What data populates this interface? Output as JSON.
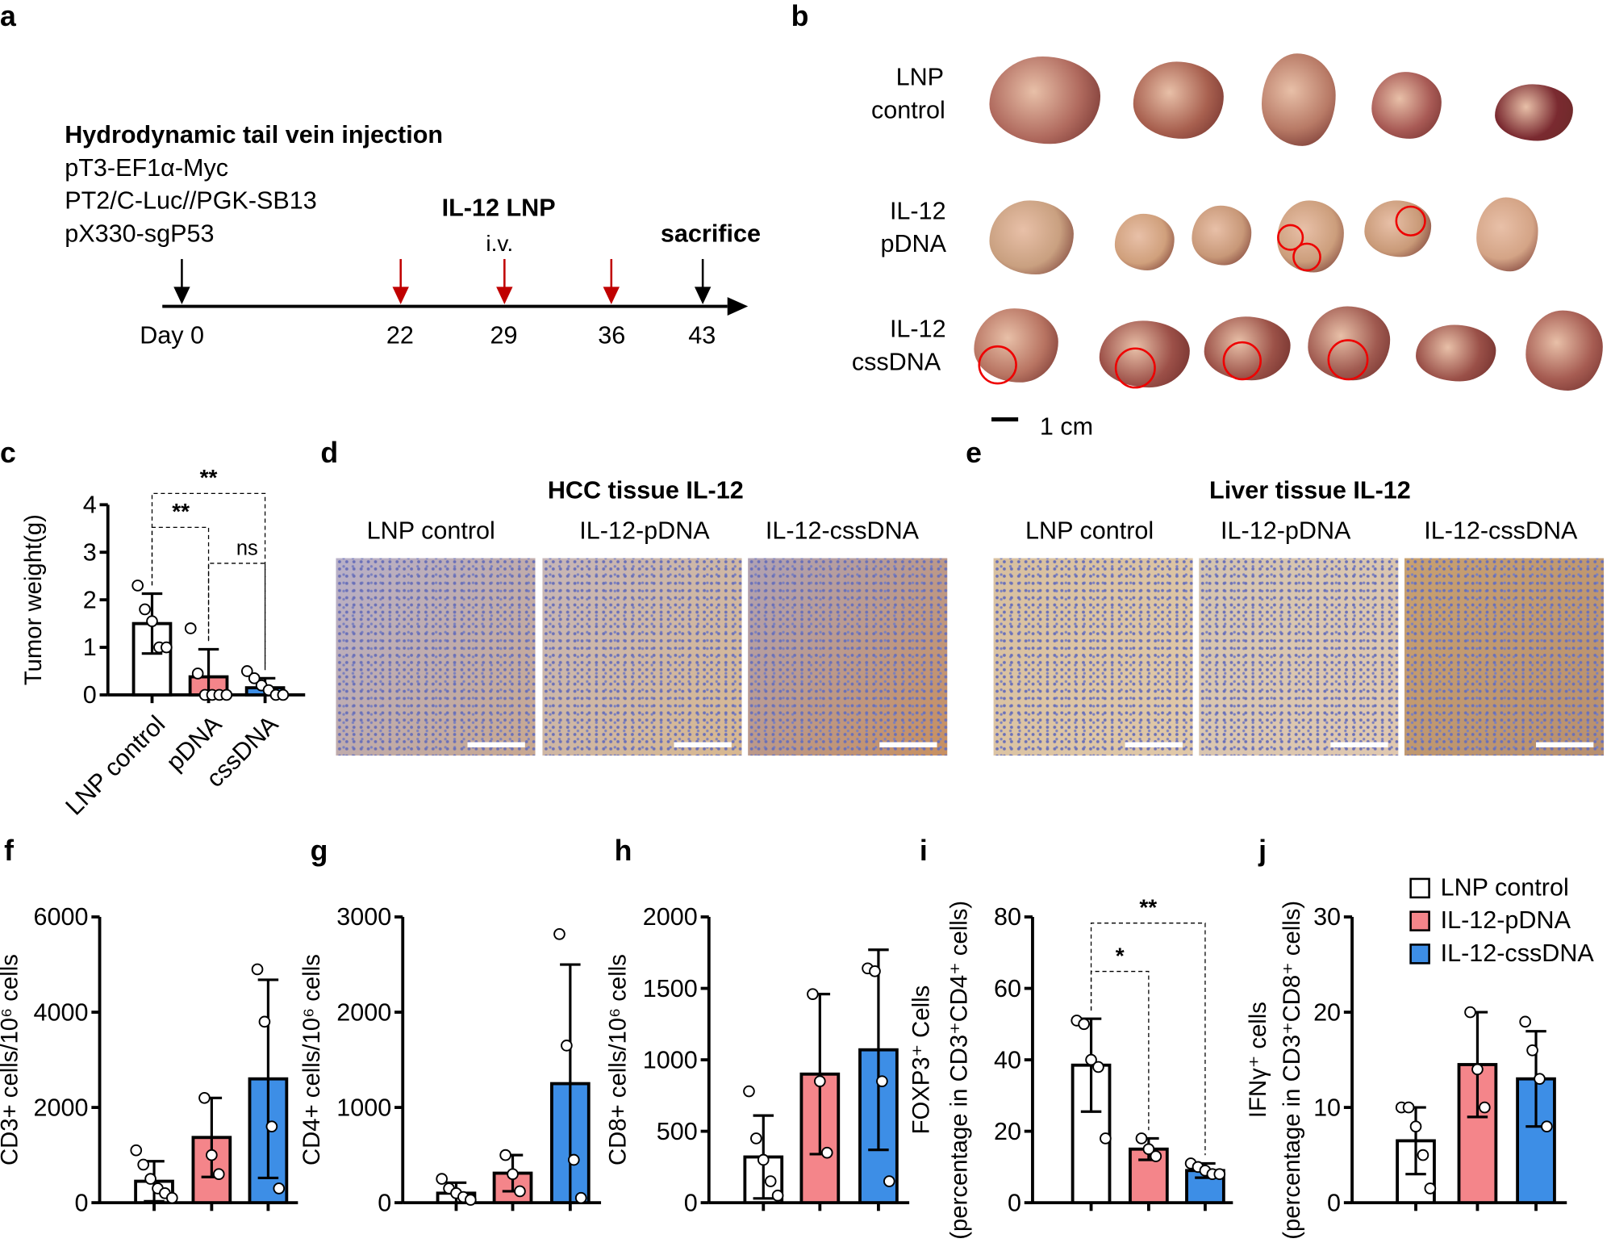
{
  "panel_letters": [
    "a",
    "b",
    "c",
    "d",
    "e",
    "f",
    "g",
    "h",
    "i",
    "j"
  ],
  "panel_a": {
    "heading": "Hydrodynamic tail vein injection",
    "plasmids": [
      "pT3-EF1α-Myc",
      "PT2/C-Luc//PGK-SB13",
      "pX330-sgP53"
    ],
    "treatment": "IL-12 LNP",
    "route": "i.v.",
    "endpoint": "sacrifice",
    "days": [
      "Day 0",
      "22",
      "29",
      "36",
      "43"
    ],
    "colors": {
      "injection": "#000000",
      "treatment": "#c00000"
    }
  },
  "panel_b": {
    "rows": [
      {
        "label_line1": "LNP",
        "label_line2": "control"
      },
      {
        "label_line1": "IL-12",
        "label_line2": "pDNA"
      },
      {
        "label_line1": "IL-12",
        "label_line2": "cssDNA"
      }
    ],
    "scale": "1 cm"
  },
  "panel_d": {
    "title": "HCC tissue IL-12",
    "columns": [
      "LNP control",
      "IL-12-pDNA",
      "IL-12-cssDNA"
    ]
  },
  "panel_e": {
    "title": "Liver tissue IL-12",
    "columns": [
      "LNP control",
      "IL-12-pDNA",
      "IL-12-cssDNA"
    ]
  },
  "legend": [
    {
      "label": "LNP control",
      "color": "#ffffff"
    },
    {
      "label": "IL-12-pDNA",
      "color": "#f4858a"
    },
    {
      "label": "IL-12-cssDNA",
      "color": "#3d8ee6"
    }
  ],
  "chart_data": [
    {
      "id": "c",
      "type": "bar",
      "ylabel": "Tumor weight(g)",
      "ylim": [
        0,
        4
      ],
      "yticks": [
        "0",
        "1",
        "2",
        "3",
        "4"
      ],
      "categories": [
        "LNP control",
        "pDNA",
        "cssDNA"
      ],
      "x_rotated": true,
      "means": [
        1.5,
        0.38,
        0.15
      ],
      "sd": [
        0.63,
        0.58,
        0.2
      ],
      "points": [
        [
          2.3,
          1.8,
          1.55,
          1.0,
          1.0
        ],
        [
          1.4,
          0.45,
          0,
          0,
          0,
          0
        ],
        [
          0.5,
          0.35,
          0.2,
          0.1,
          0,
          0
        ]
      ],
      "significance": [
        {
          "from": 0,
          "to": 2,
          "label": "**"
        },
        {
          "from": 0,
          "to": 1,
          "label": "**"
        },
        {
          "from": 1,
          "to": 2,
          "label": "ns"
        }
      ]
    },
    {
      "id": "f",
      "type": "bar",
      "ylabel": "CD3+ cells/10⁶ cells",
      "ylim": [
        0,
        6000
      ],
      "yticks": [
        "0",
        "2000",
        "4000",
        "6000"
      ],
      "categories": [
        "LNP control",
        "IL-12-pDNA",
        "IL-12-cssDNA"
      ],
      "means": [
        450,
        1370,
        2600
      ],
      "sd": [
        420,
        830,
        2080
      ],
      "points": [
        [
          1100,
          800,
          500,
          300,
          200,
          100
        ],
        [
          2200,
          1000,
          600
        ],
        [
          4900,
          3800,
          1600,
          300
        ]
      ],
      "significance": []
    },
    {
      "id": "g",
      "type": "bar",
      "ylabel": "CD4+ cells/10⁶ cells",
      "ylim": [
        0,
        3000
      ],
      "yticks": [
        "0",
        "1000",
        "2000",
        "3000"
      ],
      "categories": [
        "LNP control",
        "IL-12-pDNA",
        "IL-12-cssDNA"
      ],
      "means": [
        100,
        310,
        1250
      ],
      "sd": [
        110,
        190,
        1250
      ],
      "points": [
        [
          250,
          150,
          100,
          60,
          30
        ],
        [
          500,
          300,
          120
        ],
        [
          2820,
          1650,
          450,
          50
        ]
      ],
      "significance": []
    },
    {
      "id": "h",
      "type": "bar",
      "ylabel": "CD8+ cells/10⁶ cells",
      "ylim": [
        0,
        2000
      ],
      "yticks": [
        "0",
        "500",
        "1000",
        "1500",
        "2000"
      ],
      "categories": [
        "LNP control",
        "IL-12-pDNA",
        "IL-12-cssDNA"
      ],
      "means": [
        320,
        900,
        1070
      ],
      "sd": [
        290,
        560,
        700
      ],
      "points": [
        [
          780,
          450,
          300,
          150,
          50
        ],
        [
          1460,
          850,
          350
        ],
        [
          1640,
          1620,
          850,
          150
        ]
      ],
      "significance": []
    },
    {
      "id": "i",
      "type": "bar",
      "ylabel": "FOXP3⁺ Cells",
      "ylabel2": "(percentage in CD3⁺CD4⁺ cells)",
      "ylim": [
        0,
        80
      ],
      "yticks": [
        "0",
        "20",
        "40",
        "60",
        "80"
      ],
      "categories": [
        "LNP control",
        "IL-12-pDNA",
        "IL-12-cssDNA"
      ],
      "means": [
        38.5,
        15,
        9
      ],
      "sd": [
        13,
        3,
        2
      ],
      "points": [
        [
          51,
          50,
          40,
          38,
          18
        ],
        [
          18,
          15,
          13
        ],
        [
          11,
          10,
          9,
          8,
          8
        ]
      ],
      "significance": [
        {
          "from": 0,
          "to": 2,
          "label": "**"
        },
        {
          "from": 0,
          "to": 1,
          "label": "*"
        }
      ]
    },
    {
      "id": "j",
      "type": "bar",
      "ylabel": "IFNγ⁺ cells",
      "ylabel2": "(percentage in CD3⁺CD8⁺ cells)",
      "ylim": [
        0,
        30
      ],
      "yticks": [
        "0",
        "10",
        "20",
        "30"
      ],
      "categories": [
        "LNP control",
        "IL-12-pDNA",
        "IL-12-cssDNA"
      ],
      "means": [
        6.5,
        14.5,
        13
      ],
      "sd": [
        3.5,
        5.5,
        5
      ],
      "points": [
        [
          10,
          10,
          8,
          5,
          1.5
        ],
        [
          20,
          14,
          10
        ],
        [
          19,
          16,
          13,
          8
        ]
      ],
      "significance": []
    }
  ]
}
